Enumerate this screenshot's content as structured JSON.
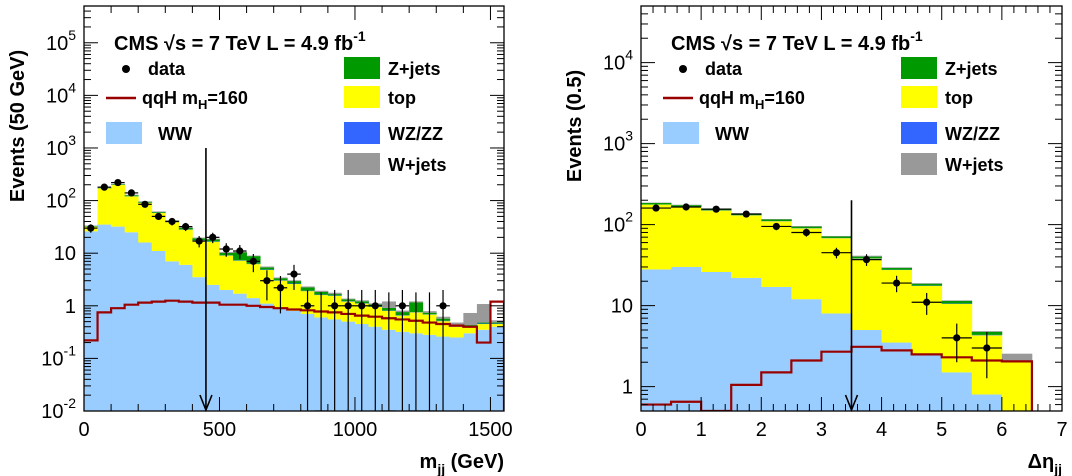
{
  "chart_data": [
    {
      "type": "histogram-stacked",
      "yscale": "log",
      "title": "CMS √s = 7 TeV L = 4.9 fb-1",
      "title_parts": {
        "experiment": "CMS",
        "sqrt": "√s",
        "energy": " = 7 TeV L = 4.9 fb",
        "lumi_exp": "-1"
      },
      "xlabel": {
        "main": "m",
        "sub": "jj",
        "unit": " (GeV)"
      },
      "ylabel": "Events (50 GeV)",
      "xlim": [
        0,
        1550
      ],
      "ylim": [
        0.01,
        500000
      ],
      "xticks": [
        0,
        500,
        1000,
        1500
      ],
      "yticks": [
        {
          "value": 0.01,
          "base": "10",
          "exp": "-2"
        },
        {
          "value": 0.1,
          "base": "10",
          "exp": "-1"
        },
        {
          "value": 1,
          "base": "1",
          "exp": ""
        },
        {
          "value": 10,
          "base": "10",
          "exp": ""
        },
        {
          "value": 100,
          "base": "10",
          "exp": "2"
        },
        {
          "value": 1000,
          "base": "10",
          "exp": "3"
        },
        {
          "value": 10000,
          "base": "10",
          "exp": "4"
        },
        {
          "value": 100000,
          "base": "10",
          "exp": "5"
        }
      ],
      "bin_edges": [
        0,
        50,
        100,
        150,
        200,
        250,
        300,
        350,
        400,
        450,
        500,
        550,
        600,
        650,
        700,
        750,
        800,
        850,
        900,
        950,
        1000,
        1050,
        1100,
        1150,
        1200,
        1250,
        1300,
        1350,
        1400,
        1450,
        1500,
        1550
      ],
      "stack": [
        {
          "name": "WW",
          "color": "#99ccff",
          "values": [
            26,
            35,
            32,
            25,
            16,
            11,
            7,
            6,
            3.5,
            2.5,
            2,
            1.7,
            1.4,
            1.1,
            0.9,
            0.8,
            0.7,
            0.6,
            0.55,
            0.5,
            0.45,
            0.4,
            0.35,
            0.32,
            0.3,
            0.28,
            0.26,
            0.25,
            0.3,
            0.35,
            0.4
          ]
        },
        {
          "name": "top",
          "color": "#ffff00",
          "values": [
            6,
            135,
            165,
            95,
            75,
            47,
            32,
            22,
            14,
            14,
            7,
            5.5,
            4.8,
            3.7,
            2.1,
            1.8,
            1.2,
            1.0,
            1.0,
            0.7,
            0.65,
            0.55,
            0.45,
            0.33,
            0.45,
            0.4,
            0.25,
            0.15,
            0.1,
            0.1,
            0.05
          ]
        },
        {
          "name": "WZ/ZZ",
          "color": "#3366ff",
          "values": [
            0.3,
            1.2,
            1.5,
            1.2,
            0.9,
            0.6,
            0.4,
            0.3,
            0.2,
            0.2,
            0.1,
            0.1,
            0.1,
            0.08,
            0.05,
            0.05,
            0.03,
            0.03,
            0.02,
            0.02,
            0.02,
            0.01,
            0.01,
            0.01,
            0.01,
            0.01,
            0.01,
            0.01,
            0.01,
            0.01,
            0.01
          ]
        },
        {
          "name": "Z+jets",
          "color": "#009900",
          "values": [
            0.8,
            4,
            6,
            5,
            3,
            2,
            2,
            2,
            1.5,
            1.5,
            1,
            3,
            2.5,
            0.5,
            0.3,
            0.3,
            0.3,
            0.2,
            0.1,
            0.1,
            0.1,
            0.1,
            0.1,
            0.1,
            0.4,
            0.05,
            0.05,
            0.02,
            0.02,
            0.02,
            0.02
          ]
        },
        {
          "name": "W+jets",
          "color": "#999999",
          "values": [
            0.5,
            3,
            4,
            3,
            2,
            1.5,
            1,
            1,
            0.6,
            0.6,
            0.4,
            0.3,
            0.2,
            0.2,
            0.1,
            0.1,
            0.1,
            0.1,
            0.1,
            0.05,
            0.05,
            0.05,
            0.3,
            0.05,
            0.05,
            0.05,
            0.05,
            0.05,
            0.3,
            0.6,
            0.05
          ]
        }
      ],
      "signal": {
        "name": "qqH m_H=160",
        "label_main": "qqH m",
        "label_sub": "H",
        "label_tail": "=160",
        "color": "#990000",
        "values": [
          0.22,
          0.75,
          0.9,
          1.05,
          1.15,
          1.2,
          1.25,
          1.2,
          1.15,
          1.15,
          1.05,
          1.05,
          1.0,
          0.95,
          0.9,
          0.85,
          0.82,
          0.78,
          0.75,
          0.7,
          0.65,
          0.62,
          0.58,
          0.55,
          0.52,
          0.48,
          0.45,
          0.42,
          0.4,
          0.2,
          1.2
        ]
      },
      "data": {
        "name": "data",
        "x": [
          25,
          75,
          125,
          175,
          225,
          275,
          325,
          375,
          425,
          475,
          525,
          575,
          625,
          675,
          725,
          775,
          825,
          875,
          925,
          975,
          1025,
          1075,
          1125,
          1175,
          1225,
          1275,
          1325
        ],
        "y": [
          30,
          180,
          220,
          140,
          85,
          50,
          40,
          32,
          17,
          20,
          12,
          11,
          7,
          3,
          2.2,
          4,
          1,
          0,
          1,
          1,
          1,
          1,
          0,
          1,
          0,
          0,
          1
        ]
      },
      "cut": {
        "x": 450,
        "y_top": 1000
      }
    },
    {
      "type": "histogram-stacked",
      "yscale": "log",
      "title": "CMS √s = 7 TeV L = 4.9 fb-1",
      "title_parts": {
        "experiment": "CMS",
        "sqrt": "√s",
        "energy": " = 7 TeV L = 4.9 fb",
        "lumi_exp": "-1"
      },
      "xlabel": {
        "main": "Δη",
        "sub": "jj",
        "unit": ""
      },
      "ylabel": "Events (0.5)",
      "xlim": [
        0,
        7
      ],
      "ylim": [
        0.5,
        50000
      ],
      "xticks": [
        0,
        1,
        2,
        3,
        4,
        5,
        6,
        7
      ],
      "yticks": [
        {
          "value": 1,
          "base": "1",
          "exp": ""
        },
        {
          "value": 10,
          "base": "10",
          "exp": ""
        },
        {
          "value": 100,
          "base": "10",
          "exp": "2"
        },
        {
          "value": 1000,
          "base": "10",
          "exp": "3"
        },
        {
          "value": 10000,
          "base": "10",
          "exp": "4"
        }
      ],
      "bin_edges": [
        0,
        0.5,
        1.0,
        1.5,
        2.0,
        2.5,
        3.0,
        3.5,
        4.0,
        4.5,
        5.0,
        5.5,
        6.0,
        6.5
      ],
      "stack": [
        {
          "name": "WW",
          "color": "#99ccff",
          "values": [
            28,
            30,
            26,
            22,
            17,
            12,
            8,
            5,
            3.5,
            2.5,
            1.5,
            0.8,
            0.5
          ]
        },
        {
          "name": "top",
          "color": "#ffff00",
          "values": [
            148,
            135,
            123,
            108,
            93,
            78,
            60,
            33,
            24,
            15,
            9,
            3.5,
            1.5
          ]
        },
        {
          "name": "WZ/ZZ",
          "color": "#3366ff",
          "values": [
            1,
            1,
            1,
            0.8,
            0.7,
            0.6,
            0.4,
            0.3,
            0.2,
            0.15,
            0.1,
            0.05,
            0.03
          ]
        },
        {
          "name": "Z+jets",
          "color": "#009900",
          "values": [
            8,
            8,
            7,
            6,
            5,
            4,
            3,
            2,
            1.5,
            1,
            0.8,
            0.4,
            0.02
          ]
        },
        {
          "name": "W+jets",
          "color": "#999999",
          "values": [
            2,
            2,
            2,
            2,
            1.5,
            1.5,
            1,
            1,
            0.5,
            0.3,
            0.2,
            0.1,
            0.5
          ]
        }
      ],
      "signal": {
        "name": "qqH m_H=160",
        "label_main": "qqH m",
        "label_sub": "H",
        "label_tail": "=160",
        "color": "#990000",
        "values": [
          0.6,
          0.65,
          0.45,
          1.05,
          1.5,
          2.1,
          2.7,
          3.1,
          2.8,
          2.5,
          2.3,
          2.1,
          2.05
        ]
      },
      "data": {
        "name": "data",
        "x": [
          0.25,
          0.75,
          1.25,
          1.75,
          2.25,
          2.75,
          3.25,
          3.75,
          4.25,
          4.75,
          5.25,
          5.75
        ],
        "y": [
          160,
          165,
          155,
          135,
          95,
          80,
          45,
          37,
          19,
          11,
          4,
          3
        ]
      },
      "cut": {
        "x": 3.5,
        "y_top": 200
      }
    }
  ],
  "legend_labels": [
    "data",
    "qqH m_H=160",
    "WW",
    "Z+jets",
    "top",
    "WZ/ZZ",
    "W+jets"
  ]
}
